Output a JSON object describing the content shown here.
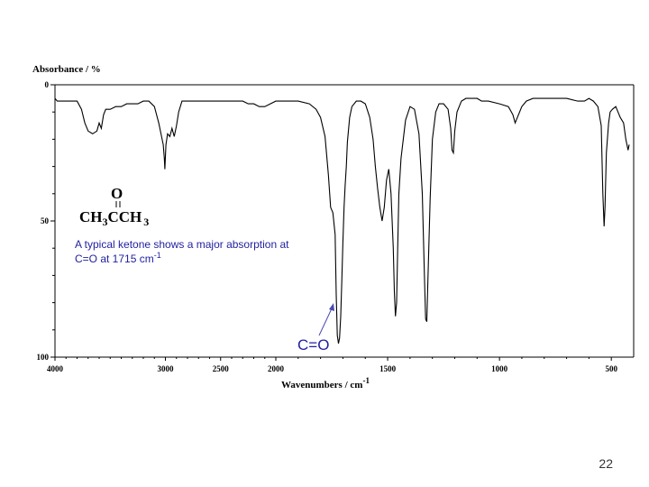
{
  "slide": {
    "number": "22"
  },
  "molecule": {
    "carbonyl_o": "O",
    "left_group": "CH",
    "left_sub": "3",
    "center": "CCH",
    "right_sub": "3"
  },
  "note": {
    "line1": "A typical ketone shows a major absorption at",
    "line2_main": "C=O at 1715 cm",
    "line2_sup": "-1"
  },
  "peak_label": "C=O",
  "colors": {
    "spectrum": "#000000",
    "annotation": "#1f1fa0",
    "axis": "#000000"
  },
  "chart_data": {
    "type": "line",
    "ylabel": "Absorbance / %",
    "xlabel_main": "Wavenumbers / cm",
    "xlabel_sup": "-1",
    "xlim": [
      4000,
      400
    ],
    "ylim": [
      0,
      100
    ],
    "y_inverted": true,
    "x_ticks": [
      4000,
      3000,
      2500,
      2000,
      1500,
      1000,
      500
    ],
    "y_ticks": [
      0,
      50,
      100
    ],
    "series": [
      {
        "values": [
          [
            4000,
            5
          ],
          [
            3980,
            6
          ],
          [
            3900,
            6
          ],
          [
            3850,
            6
          ],
          [
            3800,
            6
          ],
          [
            3760,
            9
          ],
          [
            3730,
            14
          ],
          [
            3700,
            17
          ],
          [
            3660,
            18
          ],
          [
            3620,
            17
          ],
          [
            3600,
            14
          ],
          [
            3580,
            16
          ],
          [
            3560,
            11
          ],
          [
            3540,
            9
          ],
          [
            3500,
            9
          ],
          [
            3450,
            8
          ],
          [
            3400,
            8
          ],
          [
            3350,
            7
          ],
          [
            3300,
            7
          ],
          [
            3250,
            7
          ],
          [
            3200,
            6
          ],
          [
            3150,
            6
          ],
          [
            3100,
            8
          ],
          [
            3060,
            14
          ],
          [
            3020,
            22
          ],
          [
            3010,
            27
          ],
          [
            3005,
            31
          ],
          [
            2995,
            22
          ],
          [
            2980,
            18
          ],
          [
            2960,
            19
          ],
          [
            2940,
            16
          ],
          [
            2920,
            19
          ],
          [
            2900,
            15
          ],
          [
            2880,
            10
          ],
          [
            2850,
            6
          ],
          [
            2800,
            6
          ],
          [
            2700,
            6
          ],
          [
            2600,
            6
          ],
          [
            2500,
            6
          ],
          [
            2400,
            6
          ],
          [
            2300,
            6
          ],
          [
            2250,
            7
          ],
          [
            2200,
            7
          ],
          [
            2150,
            8
          ],
          [
            2100,
            8
          ],
          [
            2050,
            7
          ],
          [
            2000,
            6
          ],
          [
            1950,
            6
          ],
          [
            1900,
            6
          ],
          [
            1850,
            7
          ],
          [
            1820,
            9
          ],
          [
            1800,
            12
          ],
          [
            1780,
            19
          ],
          [
            1765,
            33
          ],
          [
            1755,
            45
          ],
          [
            1745,
            47
          ],
          [
            1735,
            55
          ],
          [
            1730,
            77
          ],
          [
            1725,
            92
          ],
          [
            1720,
            95
          ],
          [
            1715,
            93
          ],
          [
            1710,
            85
          ],
          [
            1705,
            72
          ],
          [
            1700,
            58
          ],
          [
            1695,
            45
          ],
          [
            1690,
            37
          ],
          [
            1685,
            30
          ],
          [
            1680,
            21
          ],
          [
            1670,
            12
          ],
          [
            1660,
            8
          ],
          [
            1640,
            6
          ],
          [
            1620,
            6
          ],
          [
            1600,
            7
          ],
          [
            1580,
            12
          ],
          [
            1565,
            20
          ],
          [
            1555,
            30
          ],
          [
            1545,
            38
          ],
          [
            1535,
            45
          ],
          [
            1525,
            50
          ],
          [
            1515,
            45
          ],
          [
            1505,
            35
          ],
          [
            1495,
            31
          ],
          [
            1485,
            40
          ],
          [
            1475,
            60
          ],
          [
            1470,
            76
          ],
          [
            1465,
            85
          ],
          [
            1460,
            80
          ],
          [
            1455,
            60
          ],
          [
            1450,
            40
          ],
          [
            1440,
            27
          ],
          [
            1420,
            13
          ],
          [
            1400,
            8
          ],
          [
            1380,
            9
          ],
          [
            1360,
            18
          ],
          [
            1345,
            40
          ],
          [
            1335,
            72
          ],
          [
            1330,
            86
          ],
          [
            1325,
            87
          ],
          [
            1320,
            72
          ],
          [
            1310,
            42
          ],
          [
            1300,
            20
          ],
          [
            1285,
            10
          ],
          [
            1270,
            7
          ],
          [
            1250,
            7
          ],
          [
            1230,
            9
          ],
          [
            1218,
            16
          ],
          [
            1212,
            24
          ],
          [
            1206,
            25
          ],
          [
            1200,
            17
          ],
          [
            1190,
            10
          ],
          [
            1170,
            6
          ],
          [
            1150,
            5
          ],
          [
            1120,
            5
          ],
          [
            1100,
            5
          ],
          [
            1080,
            6
          ],
          [
            1050,
            6
          ],
          [
            1000,
            7
          ],
          [
            960,
            8
          ],
          [
            940,
            11
          ],
          [
            930,
            14
          ],
          [
            920,
            12
          ],
          [
            900,
            8
          ],
          [
            880,
            6
          ],
          [
            850,
            5
          ],
          [
            800,
            5
          ],
          [
            750,
            5
          ],
          [
            700,
            5
          ],
          [
            650,
            6
          ],
          [
            620,
            6
          ],
          [
            600,
            5
          ],
          [
            580,
            6
          ],
          [
            560,
            8
          ],
          [
            545,
            15
          ],
          [
            538,
            40
          ],
          [
            532,
            52
          ],
          [
            528,
            45
          ],
          [
            522,
            25
          ],
          [
            512,
            14
          ],
          [
            505,
            10
          ],
          [
            495,
            9
          ],
          [
            480,
            8
          ],
          [
            470,
            10
          ],
          [
            460,
            12
          ],
          [
            445,
            14
          ],
          [
            435,
            20
          ],
          [
            425,
            24
          ],
          [
            420,
            22
          ]
        ]
      }
    ]
  }
}
